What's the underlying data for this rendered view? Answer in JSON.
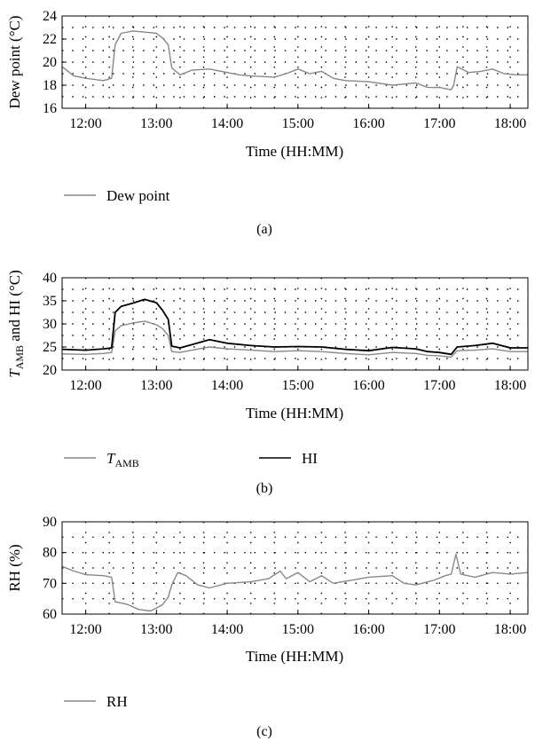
{
  "colors": {
    "gray_series": "#888888",
    "black_series": "#000000"
  },
  "chart_data": [
    {
      "type": "line",
      "panel": "(a)",
      "xlabel": "Time (HH:MM)",
      "ylabel": "Dew point (°C)",
      "ylim": [
        16,
        24
      ],
      "yticks": [
        "16",
        "18",
        "20",
        "22",
        "24"
      ],
      "xlim": [
        "11:40",
        "18:15"
      ],
      "xticks": [
        "12:00",
        "13:00",
        "14:00",
        "15:00",
        "16:00",
        "17:00",
        "18:00"
      ],
      "grid": "dotted",
      "legend": "below",
      "series": [
        {
          "name": "Dew point",
          "points": [
            [
              "11:40",
              19.6
            ],
            [
              "11:50",
              18.8
            ],
            [
              "12:00",
              18.6
            ],
            [
              "12:15",
              18.4
            ],
            [
              "12:22",
              18.6
            ],
            [
              "12:25",
              21.5
            ],
            [
              "12:30",
              22.5
            ],
            [
              "12:40",
              22.7
            ],
            [
              "12:50",
              22.6
            ],
            [
              "13:00",
              22.5
            ],
            [
              "13:05",
              22.1
            ],
            [
              "13:10",
              21.5
            ],
            [
              "13:13",
              19.5
            ],
            [
              "13:20",
              18.9
            ],
            [
              "13:30",
              19.3
            ],
            [
              "13:45",
              19.4
            ],
            [
              "14:00",
              19.1
            ],
            [
              "14:10",
              18.9
            ],
            [
              "14:20",
              18.8
            ],
            [
              "14:40",
              18.7
            ],
            [
              "14:50",
              19.0
            ],
            [
              "15:00",
              19.4
            ],
            [
              "15:10",
              19.0
            ],
            [
              "15:20",
              19.2
            ],
            [
              "15:30",
              18.6
            ],
            [
              "15:40",
              18.4
            ],
            [
              "16:00",
              18.3
            ],
            [
              "16:20",
              18.0
            ],
            [
              "16:40",
              18.2
            ],
            [
              "16:50",
              17.8
            ],
            [
              "17:00",
              17.8
            ],
            [
              "17:10",
              17.6
            ],
            [
              "17:12",
              18.0
            ],
            [
              "17:15",
              19.6
            ],
            [
              "17:25",
              19.1
            ],
            [
              "17:35",
              19.2
            ],
            [
              "17:45",
              19.4
            ],
            [
              "17:55",
              19.0
            ],
            [
              "18:05",
              18.9
            ],
            [
              "18:15",
              18.9
            ]
          ]
        }
      ]
    },
    {
      "type": "line",
      "panel": "(b)",
      "xlabel": "Time (HH:MM)",
      "ylabel_main": "T",
      "ylabel_sub": "AMB",
      "ylabel_rest": " and HI (°C)",
      "ylim": [
        20,
        40
      ],
      "yticks": [
        "20",
        "25",
        "30",
        "35",
        "40"
      ],
      "xlim": [
        "11:40",
        "18:15"
      ],
      "xticks": [
        "12:00",
        "13:00",
        "14:00",
        "15:00",
        "16:00",
        "17:00",
        "18:00"
      ],
      "grid": "dotted",
      "legend": "below",
      "series": [
        {
          "name_main": "T",
          "name_sub": "AMB",
          "points": [
            [
              "11:40",
              23.5
            ],
            [
              "12:00",
              23.4
            ],
            [
              "12:15",
              23.6
            ],
            [
              "12:22",
              23.8
            ],
            [
              "12:25",
              28.5
            ],
            [
              "12:30",
              29.6
            ],
            [
              "12:40",
              30.2
            ],
            [
              "12:50",
              30.6
            ],
            [
              "13:00",
              29.8
            ],
            [
              "13:05",
              29.0
            ],
            [
              "13:10",
              27.5
            ],
            [
              "13:13",
              24.0
            ],
            [
              "13:20",
              23.8
            ],
            [
              "13:30",
              24.3
            ],
            [
              "13:45",
              25.0
            ],
            [
              "14:00",
              24.6
            ],
            [
              "14:20",
              24.3
            ],
            [
              "14:40",
              24.0
            ],
            [
              "15:00",
              24.2
            ],
            [
              "15:20",
              24.0
            ],
            [
              "15:40",
              23.6
            ],
            [
              "16:00",
              23.3
            ],
            [
              "16:20",
              23.8
            ],
            [
              "16:40",
              23.6
            ],
            [
              "16:50",
              23.2
            ],
            [
              "17:00",
              23.1
            ],
            [
              "17:10",
              22.8
            ],
            [
              "17:15",
              24.2
            ],
            [
              "17:30",
              24.3
            ],
            [
              "17:45",
              24.6
            ],
            [
              "18:00",
              24.0
            ],
            [
              "18:15",
              24.0
            ]
          ]
        },
        {
          "name": "HI",
          "points": [
            [
              "11:40",
              24.5
            ],
            [
              "12:00",
              24.3
            ],
            [
              "12:15",
              24.6
            ],
            [
              "12:22",
              24.8
            ],
            [
              "12:25",
              32.5
            ],
            [
              "12:30",
              33.8
            ],
            [
              "12:40",
              34.5
            ],
            [
              "12:50",
              35.3
            ],
            [
              "13:00",
              34.6
            ],
            [
              "13:05",
              33.0
            ],
            [
              "13:10",
              31.0
            ],
            [
              "13:13",
              25.2
            ],
            [
              "13:20",
              24.8
            ],
            [
              "13:30",
              25.5
            ],
            [
              "13:45",
              26.6
            ],
            [
              "14:00",
              25.8
            ],
            [
              "14:20",
              25.3
            ],
            [
              "14:40",
              25.0
            ],
            [
              "15:00",
              25.1
            ],
            [
              "15:20",
              25.0
            ],
            [
              "15:40",
              24.5
            ],
            [
              "16:00",
              24.2
            ],
            [
              "16:20",
              24.9
            ],
            [
              "16:40",
              24.6
            ],
            [
              "16:50",
              24.0
            ],
            [
              "17:00",
              23.8
            ],
            [
              "17:10",
              23.4
            ],
            [
              "17:15",
              25.0
            ],
            [
              "17:30",
              25.3
            ],
            [
              "17:45",
              25.8
            ],
            [
              "18:00",
              24.8
            ],
            [
              "18:15",
              24.8
            ]
          ]
        }
      ]
    },
    {
      "type": "line",
      "panel": "(c)",
      "xlabel": "Time (HH:MM)",
      "ylabel": "RH (%)",
      "ylim": [
        60,
        90
      ],
      "yticks": [
        "60",
        "70",
        "80",
        "90"
      ],
      "xlim": [
        "11:40",
        "18:15"
      ],
      "xticks": [
        "12:00",
        "13:00",
        "14:00",
        "15:00",
        "16:00",
        "17:00",
        "18:00"
      ],
      "grid": "dotted",
      "legend": "below",
      "series": [
        {
          "name": "RH",
          "points": [
            [
              "11:40",
              75.5
            ],
            [
              "11:50",
              74.0
            ],
            [
              "12:00",
              72.8
            ],
            [
              "12:15",
              72.5
            ],
            [
              "12:22",
              72.0
            ],
            [
              "12:25",
              64.0
            ],
            [
              "12:35",
              63.2
            ],
            [
              "12:45",
              61.5
            ],
            [
              "12:55",
              61.0
            ],
            [
              "13:00",
              62.0
            ],
            [
              "13:05",
              63.0
            ],
            [
              "13:10",
              65.5
            ],
            [
              "13:13",
              69.5
            ],
            [
              "13:18",
              73.5
            ],
            [
              "13:25",
              72.5
            ],
            [
              "13:35",
              69.5
            ],
            [
              "13:45",
              68.5
            ],
            [
              "14:00",
              70.0
            ],
            [
              "14:20",
              70.5
            ],
            [
              "14:35",
              71.5
            ],
            [
              "14:45",
              74.0
            ],
            [
              "14:50",
              71.5
            ],
            [
              "15:00",
              73.5
            ],
            [
              "15:10",
              70.5
            ],
            [
              "15:20",
              72.5
            ],
            [
              "15:30",
              70.0
            ],
            [
              "15:45",
              71.0
            ],
            [
              "16:00",
              72.0
            ],
            [
              "16:20",
              72.5
            ],
            [
              "16:30",
              70.0
            ],
            [
              "16:40",
              69.5
            ],
            [
              "16:55",
              71.0
            ],
            [
              "17:05",
              72.5
            ],
            [
              "17:10",
              73.0
            ],
            [
              "17:14",
              79.5
            ],
            [
              "17:18",
              73.0
            ],
            [
              "17:30",
              72.0
            ],
            [
              "17:45",
              73.5
            ],
            [
              "18:00",
              73.0
            ],
            [
              "18:15",
              73.5
            ]
          ]
        }
      ]
    }
  ]
}
